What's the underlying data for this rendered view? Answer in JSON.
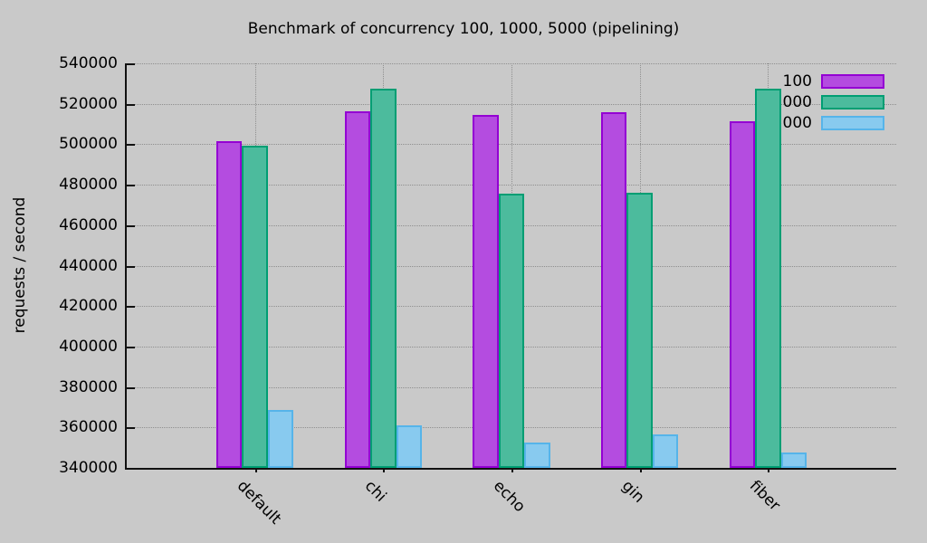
{
  "chart_data": {
    "type": "bar",
    "title": "Benchmark of concurrency 100, 1000, 5000 (pipelining)",
    "ylabel": "requests / second",
    "xlabel": "",
    "categories": [
      "default",
      "chi",
      "echo",
      "gin",
      "fiber"
    ],
    "series": [
      {
        "name": "100",
        "fill": "#b44ce0",
        "border": "#9400d3",
        "values": [
          501500,
          516300,
          514600,
          515800,
          511400
        ]
      },
      {
        "name": "1000",
        "fill": "#4cbb9d",
        "border": "#009e73",
        "values": [
          499300,
          527300,
          475800,
          476100,
          527500
        ]
      },
      {
        "name": "5000",
        "fill": "#88caef",
        "border": "#56b4e9",
        "values": [
          368500,
          361200,
          352400,
          356400,
          347500
        ]
      }
    ],
    "ylim": [
      340000,
      540000
    ],
    "ytick_step": 20000,
    "ytick_labels": [
      "340000",
      "360000",
      "380000",
      "400000",
      "420000",
      "440000",
      "460000",
      "480000",
      "500000",
      "520000",
      "540000"
    ],
    "grid": true,
    "legend_position": "top-right",
    "background_color": "#c9c9c9"
  }
}
